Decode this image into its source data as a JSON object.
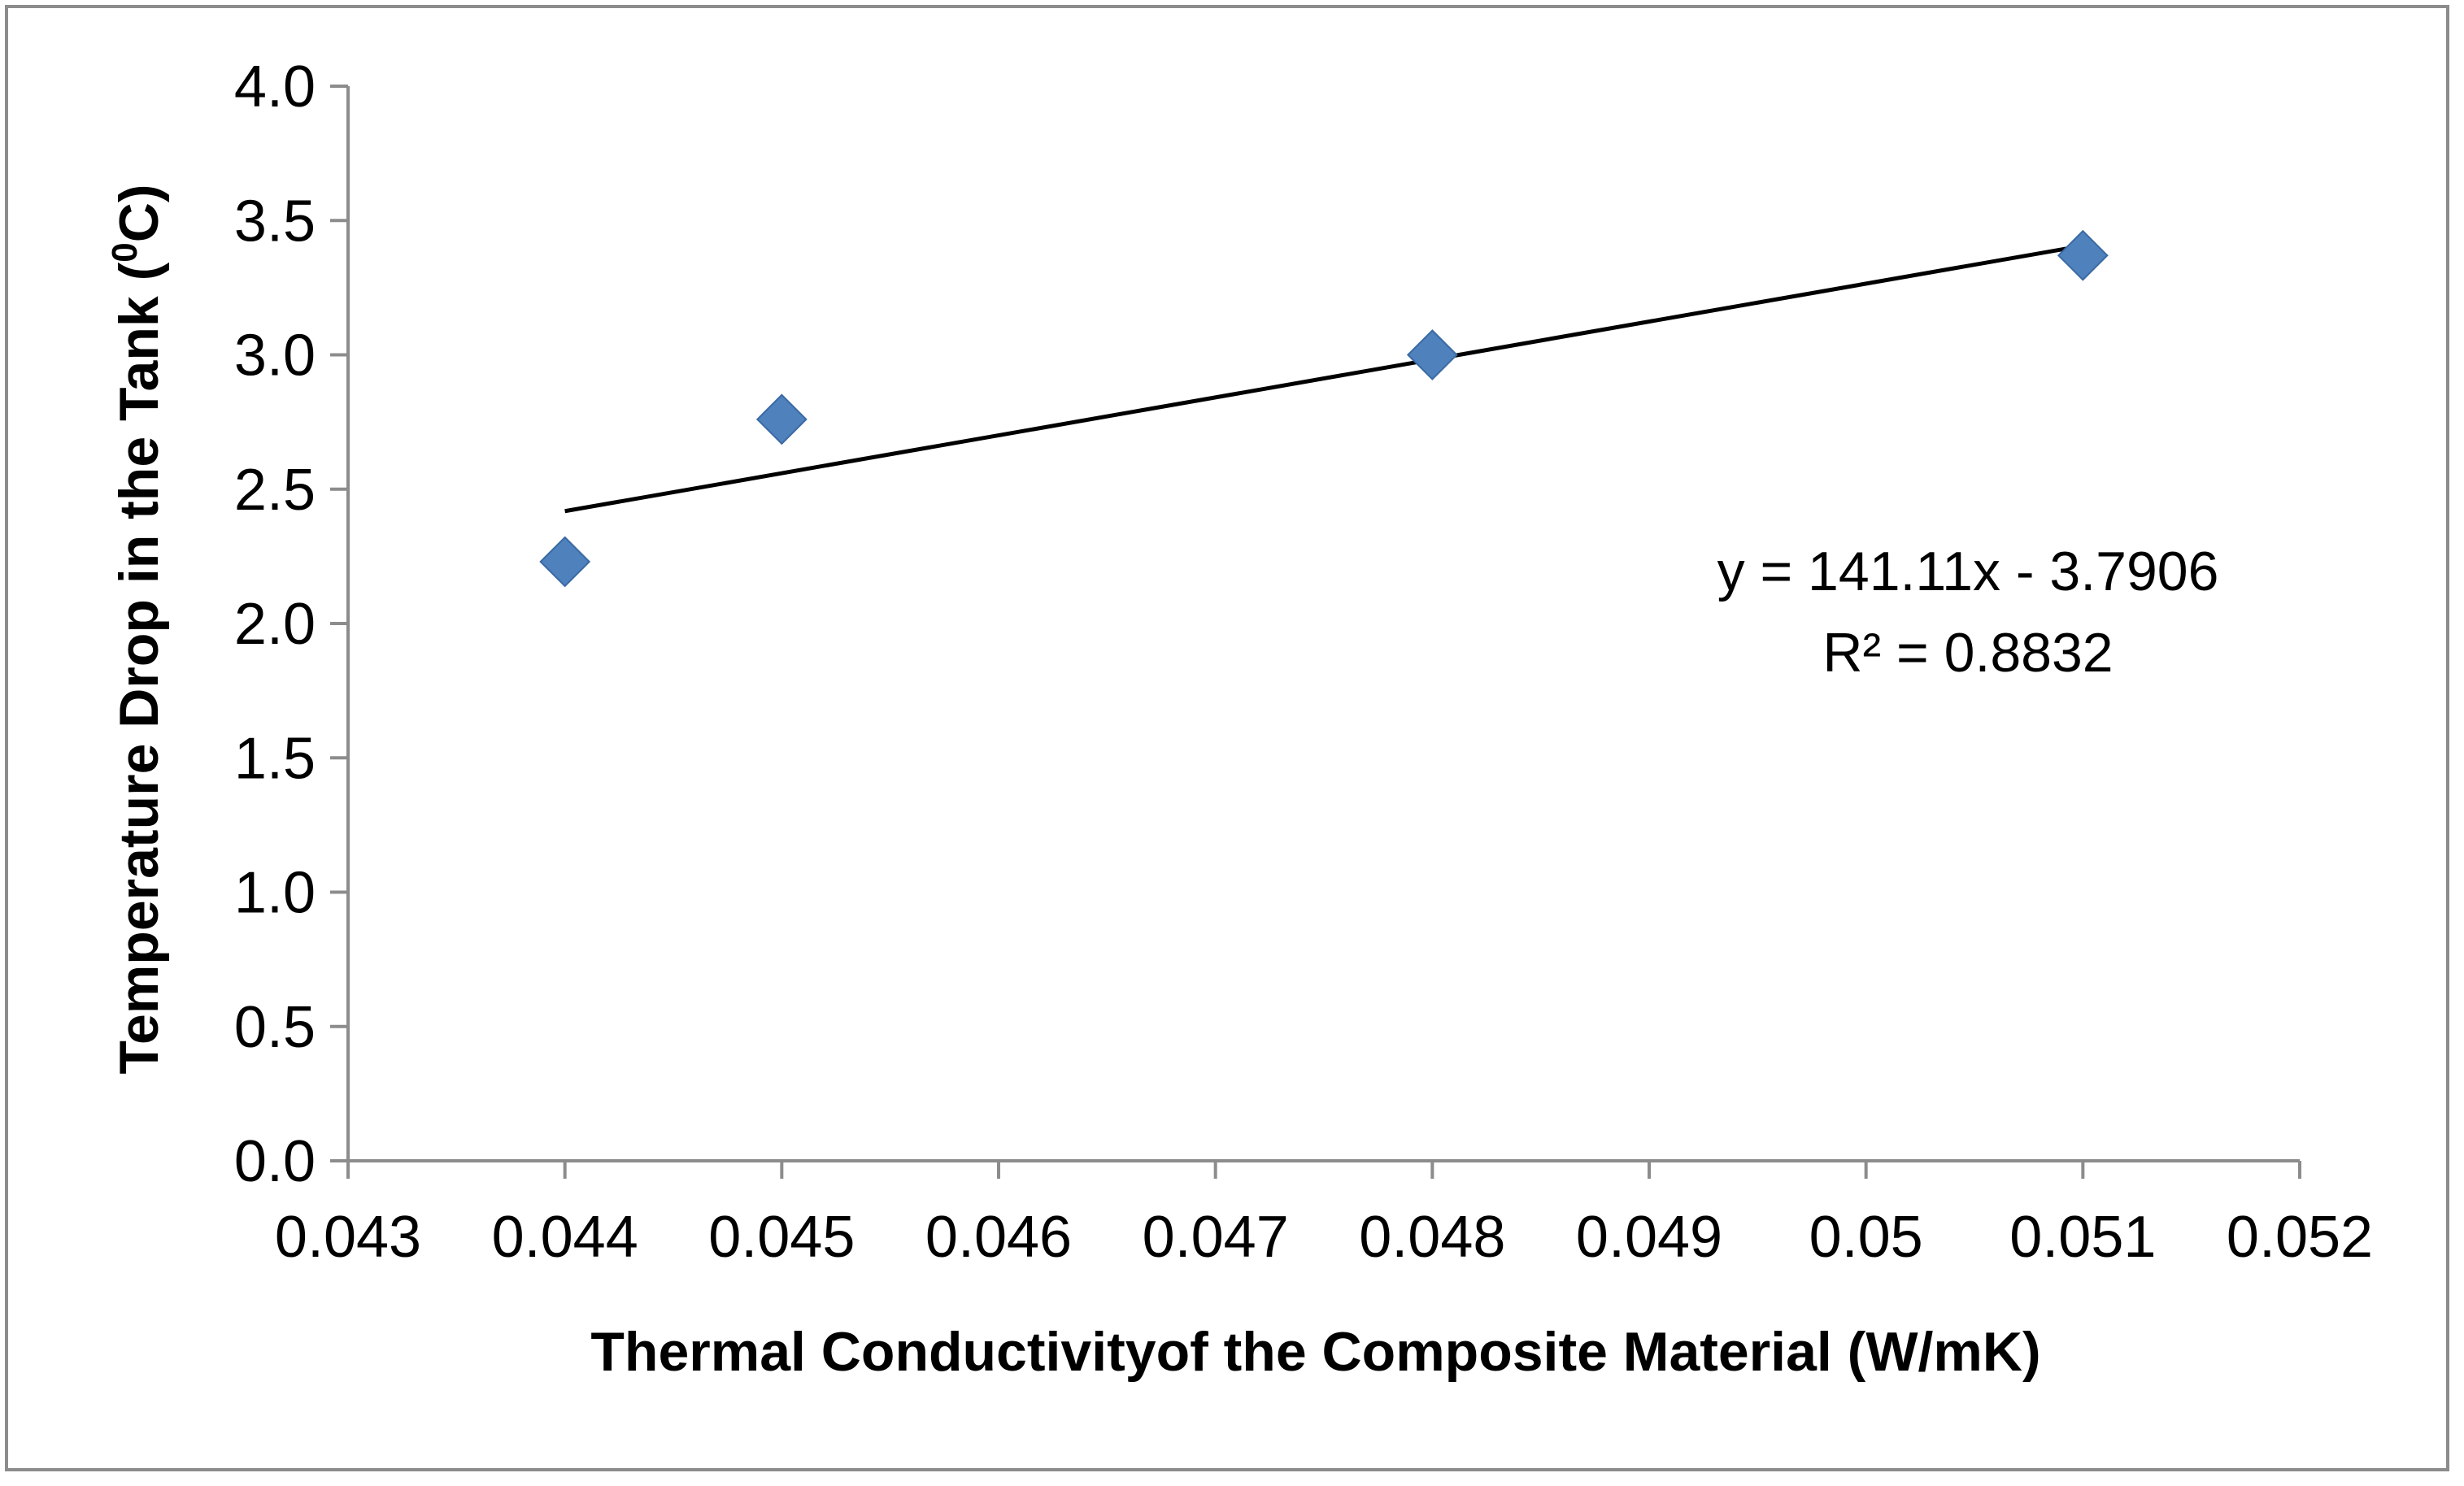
{
  "chart_data": {
    "type": "scatter",
    "title": "",
    "xlabel": "Thermal Conductivityof the Composite Material (W/mK)",
    "ylabel_parts": [
      "Temperature Drop in the Tank (",
      "0",
      "C)"
    ],
    "xlim": [
      0.043,
      0.052
    ],
    "ylim": [
      0.0,
      4.0
    ],
    "x_ticks": [
      "0.043",
      "0.044",
      "0.045",
      "0.046",
      "0.047",
      "0.048",
      "0.049",
      "0.05",
      "0.051",
      "0.052"
    ],
    "x_tick_values": [
      0.043,
      0.044,
      0.045,
      0.046,
      0.047,
      0.048,
      0.049,
      0.05,
      0.051,
      0.052
    ],
    "y_ticks": [
      "0.0",
      "0.5",
      "1.0",
      "1.5",
      "2.0",
      "2.5",
      "3.0",
      "3.5",
      "4.0"
    ],
    "y_tick_values": [
      0.0,
      0.5,
      1.0,
      1.5,
      2.0,
      2.5,
      3.0,
      3.5,
      4.0
    ],
    "series": [
      {
        "name": "Temperature Drop",
        "marker": "diamond",
        "color": "#4f81bd",
        "x": [
          0.044,
          0.045,
          0.048,
          0.051
        ],
        "y": [
          2.23,
          2.76,
          3.0,
          3.37
        ]
      }
    ],
    "trendline": {
      "type": "linear",
      "slope": 141.11,
      "intercept": -3.7906,
      "x_range": [
        0.044,
        0.051
      ],
      "color": "#000000",
      "equation_text": "y = 141.11x - 3.7906",
      "r2_text": "R² = 0.8832"
    },
    "grid": false,
    "legend": "none",
    "frame_color": "#8c8c8c"
  }
}
